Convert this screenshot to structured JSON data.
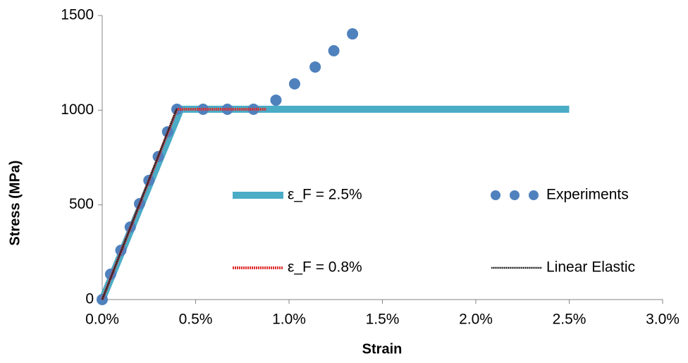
{
  "chart_data": {
    "type": "line",
    "x_label": "Strain",
    "y_label": "Stress (MPa)",
    "xlim": [
      0,
      3
    ],
    "ylim": [
      0,
      1500
    ],
    "xticks": [
      {
        "value": 0,
        "label": "0.0%"
      },
      {
        "value": 0.5,
        "label": "0.5%"
      },
      {
        "value": 1,
        "label": "1.0%"
      },
      {
        "value": 1.5,
        "label": "1.5%"
      },
      {
        "value": 2,
        "label": "2.0%"
      },
      {
        "value": 2.5,
        "label": "2.5%"
      },
      {
        "value": 3,
        "label": "3.0%"
      }
    ],
    "yticks": [
      0,
      500,
      1000,
      1500
    ],
    "grid": false,
    "legend": "inside-right",
    "series": [
      {
        "name": "ε_F = 2.5%",
        "color": "#4bacc6",
        "mode": "line",
        "x": [
          0,
          0.42,
          2.5
        ],
        "values": [
          0,
          1005,
          1005
        ]
      },
      {
        "name": "Experiments",
        "color": "#4f81bd",
        "mode": "markers",
        "x": [
          0,
          0.045,
          0.1,
          0.15,
          0.2,
          0.25,
          0.3,
          0.35,
          0.4,
          0.54,
          0.67,
          0.81,
          0.93,
          1.03,
          1.14,
          1.24,
          1.34
        ],
        "values": [
          0,
          134,
          260,
          383,
          506,
          629,
          755,
          886,
          1005,
          1005,
          1005,
          1005,
          1053,
          1139,
          1228,
          1314,
          1403
        ]
      },
      {
        "name": "ε_F = 0.8%",
        "color": "#e03030",
        "mode": "dashed",
        "x": [
          0,
          0.4,
          0.88
        ],
        "values": [
          0,
          1005,
          1005
        ]
      },
      {
        "name": "Linear Elastic",
        "color": "#111111",
        "mode": "thin",
        "x": [
          0,
          0.4
        ],
        "values": [
          0,
          1010
        ]
      }
    ]
  }
}
